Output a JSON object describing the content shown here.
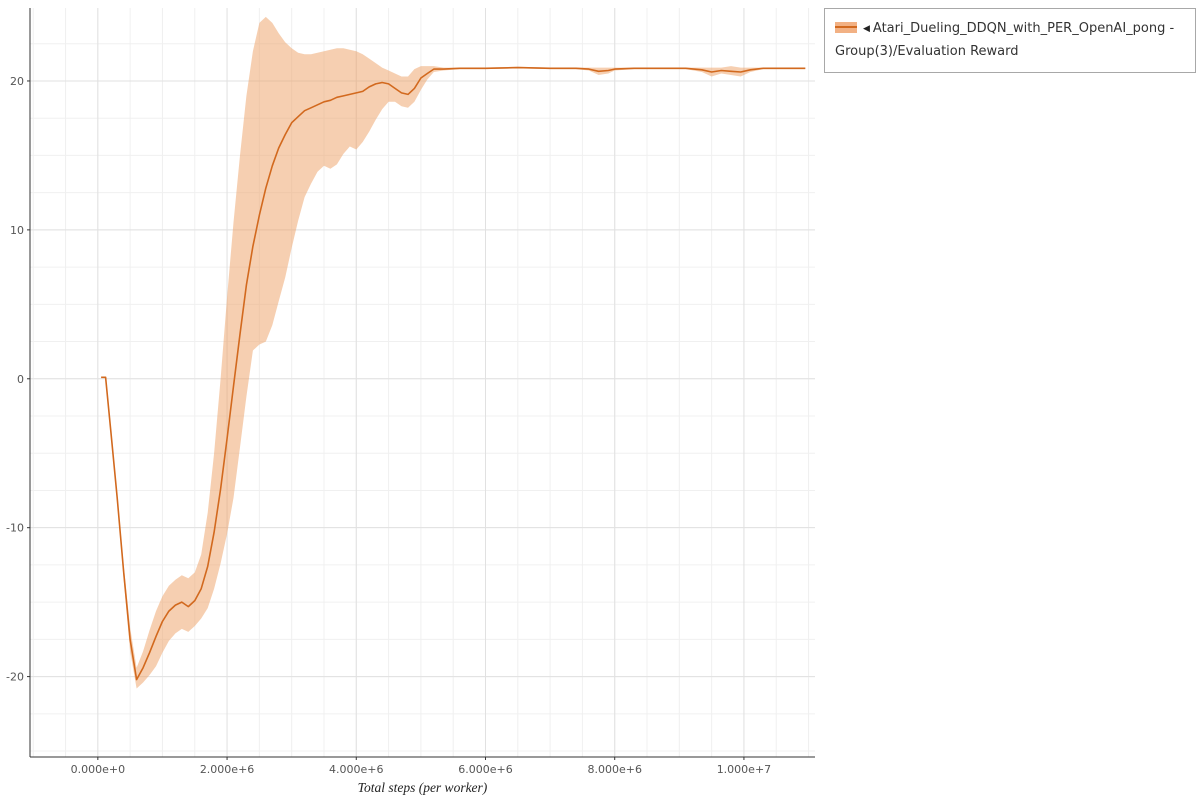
{
  "page": {
    "background": "#ffffff"
  },
  "legend": {
    "collapse_icon": "◀",
    "label": "Atari_Dueling_DDQN_with_PER_OpenAI_pong - Group(3)/Evaluation Reward",
    "swatch_fill_color": "#f2b184",
    "swatch_line_color": "#d2691e",
    "border_color": "#a8a8a8"
  },
  "chart_data": {
    "type": "line",
    "title": "",
    "xlabel": "Total steps (per worker)",
    "ylabel": "",
    "x_unit_note": "x values are total steps in millions",
    "xlim": [
      -1.05,
      11.1
    ],
    "ylim": [
      -25.4,
      24.9
    ],
    "grid": {
      "on": true,
      "minor_x_step": 0.5,
      "minor_y_step": 2.5,
      "minor_color": "#f0f0f0",
      "major_color": "#e1e1e1"
    },
    "axis_color": "#333333",
    "legend_position": "top-right-outside",
    "x_ticks": [
      {
        "v": 0,
        "label": "0.000e+0"
      },
      {
        "v": 2,
        "label": "2.000e+6"
      },
      {
        "v": 4,
        "label": "4.000e+6"
      },
      {
        "v": 6,
        "label": "6.000e+6"
      },
      {
        "v": 8,
        "label": "8.000e+6"
      },
      {
        "v": 10,
        "label": "1.000e+7"
      }
    ],
    "y_ticks": [
      {
        "v": -20,
        "label": "-20"
      },
      {
        "v": -10,
        "label": "-10"
      },
      {
        "v": 0,
        "label": "0"
      },
      {
        "v": 10,
        "label": "10"
      },
      {
        "v": 20,
        "label": "20"
      }
    ],
    "series": [
      {
        "name": "Atari_Dueling_DDQN_with_PER_OpenAI_pong - Group(3)/Evaluation Reward",
        "line_color": "#d2691e",
        "line_width": 1.6,
        "band_color": "#eda064",
        "band_opacity": 0.5,
        "x": [
          0.05,
          0.12,
          0.2,
          0.3,
          0.4,
          0.5,
          0.6,
          0.7,
          0.8,
          0.9,
          1.0,
          1.1,
          1.2,
          1.3,
          1.4,
          1.5,
          1.6,
          1.7,
          1.8,
          1.9,
          2.0,
          2.1,
          2.2,
          2.3,
          2.4,
          2.5,
          2.6,
          2.7,
          2.8,
          2.9,
          3.0,
          3.1,
          3.2,
          3.3,
          3.4,
          3.5,
          3.6,
          3.7,
          3.8,
          3.9,
          4.0,
          4.1,
          4.2,
          4.3,
          4.4,
          4.5,
          4.6,
          4.7,
          4.8,
          4.9,
          5.0,
          5.1,
          5.2,
          5.35,
          5.6,
          6.0,
          6.5,
          7.0,
          7.4,
          7.6,
          7.75,
          7.9,
          8.0,
          8.3,
          8.7,
          9.1,
          9.35,
          9.5,
          9.65,
          9.8,
          9.95,
          10.1,
          10.3,
          10.6,
          10.95
        ],
        "mean": [
          0.1,
          0.1,
          -3.5,
          -8.0,
          -13.0,
          -17.5,
          -20.2,
          -19.4,
          -18.4,
          -17.3,
          -16.3,
          -15.6,
          -15.2,
          -15.0,
          -15.3,
          -14.9,
          -14.1,
          -12.6,
          -10.3,
          -7.4,
          -4.0,
          -0.5,
          3.0,
          6.3,
          8.9,
          11.0,
          12.8,
          14.3,
          15.5,
          16.4,
          17.2,
          17.6,
          18.0,
          18.2,
          18.4,
          18.6,
          18.7,
          18.9,
          19.0,
          19.1,
          19.2,
          19.3,
          19.6,
          19.8,
          19.9,
          19.8,
          19.5,
          19.2,
          19.1,
          19.5,
          20.2,
          20.5,
          20.8,
          20.8,
          20.85,
          20.85,
          20.9,
          20.85,
          20.85,
          20.8,
          20.65,
          20.7,
          20.8,
          20.85,
          20.85,
          20.85,
          20.75,
          20.6,
          20.7,
          20.65,
          20.6,
          20.75,
          20.85,
          20.85,
          20.85
        ],
        "lower": [
          0.1,
          0.1,
          -3.5,
          -8.2,
          -13.5,
          -18.3,
          -20.8,
          -20.4,
          -19.9,
          -19.3,
          -18.4,
          -17.6,
          -17.1,
          -16.8,
          -17.0,
          -16.6,
          -16.1,
          -15.4,
          -14.1,
          -12.4,
          -10.4,
          -8.0,
          -4.6,
          -1.2,
          1.9,
          2.3,
          2.5,
          3.6,
          5.2,
          6.8,
          8.8,
          10.6,
          12.2,
          13.1,
          13.9,
          14.3,
          14.1,
          14.4,
          15.1,
          15.6,
          15.4,
          15.9,
          16.6,
          17.4,
          18.1,
          18.6,
          18.6,
          18.3,
          18.2,
          18.6,
          19.4,
          20.1,
          20.6,
          20.7,
          20.8,
          20.8,
          20.85,
          20.8,
          20.8,
          20.7,
          20.4,
          20.5,
          20.7,
          20.8,
          20.8,
          20.8,
          20.6,
          20.3,
          20.5,
          20.4,
          20.3,
          20.6,
          20.8,
          20.8,
          20.8
        ],
        "upper": [
          0.1,
          0.1,
          -3.5,
          -7.8,
          -12.5,
          -16.7,
          -19.4,
          -18.3,
          -16.9,
          -15.6,
          -14.6,
          -13.9,
          -13.5,
          -13.2,
          -13.4,
          -13.0,
          -11.8,
          -9.0,
          -5.0,
          0.0,
          5.5,
          10.5,
          15.0,
          19.0,
          22.0,
          23.9,
          24.3,
          23.9,
          23.2,
          22.6,
          22.2,
          21.9,
          21.8,
          21.8,
          21.9,
          22.0,
          22.1,
          22.2,
          22.2,
          22.1,
          22.0,
          21.8,
          21.5,
          21.2,
          20.9,
          20.7,
          20.5,
          20.3,
          20.3,
          20.8,
          21.0,
          21.0,
          21.0,
          20.9,
          20.9,
          20.9,
          20.95,
          20.9,
          20.9,
          20.9,
          20.9,
          20.9,
          20.9,
          20.9,
          20.9,
          20.9,
          20.9,
          20.9,
          20.9,
          21.0,
          20.9,
          20.9,
          20.9,
          20.9,
          20.9
        ]
      }
    ]
  }
}
